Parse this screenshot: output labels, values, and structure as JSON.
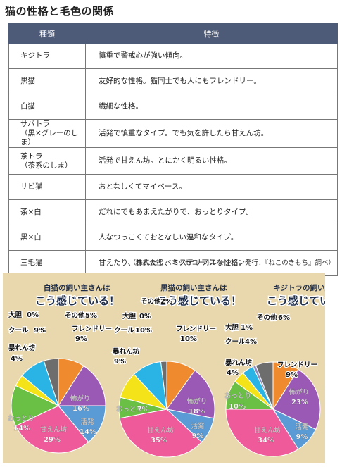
{
  "page_title": "猫の性格と毛色の関係",
  "table": {
    "headers": [
      "種類",
      "特徴"
    ],
    "rows": [
      {
        "type": [
          "キジトラ"
        ],
        "feature": "慎重で警戒心が強い傾向。"
      },
      {
        "type": [
          "黒猫"
        ],
        "feature": "友好的な性格。猫同士でも人にもフレンドリー。"
      },
      {
        "type": [
          "白猫"
        ],
        "feature": "繊細な性格。"
      },
      {
        "type": [
          "サバトラ",
          "（黒×グレーのしま）"
        ],
        "feature": "活発で慎重なタイプ。でも気を許したら甘えん坊。"
      },
      {
        "type": [
          "茶トラ",
          "（茶系のしま）"
        ],
        "feature": "活発で甘えん坊。とにかく明るい性格。"
      },
      {
        "type": [
          "サビ猫"
        ],
        "feature": "おとなしくてマイペース。"
      },
      {
        "type": [
          "茶×白"
        ],
        "feature": "だれにでもあまえたがりで、おっとりタイプ。"
      },
      {
        "type": [
          "黒×白"
        ],
        "feature": "人なつっこくておとなしい温和なタイプ。"
      },
      {
        "type": [
          "三毛猫"
        ],
        "feature": "甘えたり、暴れたり、ミステリアスな性格。"
      }
    ]
  },
  "source_note": "（株式会社 ベネッセコーポレーション発行：『ねこのきもち』調べ）",
  "colors": {
    "header_bg": "#4d5a78",
    "panel_bg": "#e9d8ad",
    "フレンドリー": "#f08a2e",
    "怖がり": "#9b59b6",
    "活発": "#5b9bd5",
    "甘えん坊": "#ee5a9a",
    "おっとり": "#6abf45",
    "暴れん坊": "#f5e31a",
    "クール": "#2ab4e6",
    "大胆": "#8a8cc2",
    "その他": "#6d6d6d"
  },
  "chart_data": [
    {
      "type": "pie",
      "title": [
        "白猫の飼い主さんは",
        "こう感じている！"
      ],
      "slices": [
        {
          "label": "フレンドリー",
          "value": 9,
          "text": "9%"
        },
        {
          "label": "怖がり",
          "value": 16,
          "text": "16%"
        },
        {
          "label": "活発",
          "value": 14,
          "text": "14%"
        },
        {
          "label": "甘えん坊",
          "value": 29,
          "text": "29%"
        },
        {
          "label": "おっとり",
          "value": 14,
          "text": "14%"
        },
        {
          "label": "暴れん坊",
          "value": 4,
          "text": "4%"
        },
        {
          "label": "クール",
          "value": 9,
          "text": "9%"
        },
        {
          "label": "大胆",
          "value": 0,
          "text": "0%"
        },
        {
          "label": "その他",
          "value": 5,
          "text": "5%"
        }
      ]
    },
    {
      "type": "pie",
      "title": [
        "黒猫の飼い主さんは",
        "こう感じている！"
      ],
      "slices": [
        {
          "label": "フレンドリー",
          "value": 10,
          "text": "10%"
        },
        {
          "label": "怖がり",
          "value": 18,
          "text": "18%"
        },
        {
          "label": "活発",
          "value": 9,
          "text": "9%"
        },
        {
          "label": "甘えん坊",
          "value": 35,
          "text": "35%"
        },
        {
          "label": "おっとり",
          "value": 7,
          "text": "7%"
        },
        {
          "label": "暴れん坊",
          "value": 9,
          "text": "9%"
        },
        {
          "label": "クール",
          "value": 10,
          "text": "10%"
        },
        {
          "label": "大胆",
          "value": 0,
          "text": "0%"
        },
        {
          "label": "その他",
          "value": 2,
          "text": "2%"
        }
      ]
    },
    {
      "type": "pie",
      "title": [
        "キジトラの飼い主さんは",
        "こう感じている！"
      ],
      "slices": [
        {
          "label": "フレンドリー",
          "value": 9,
          "text": "9%"
        },
        {
          "label": "怖がり",
          "value": 23,
          "text": "23%"
        },
        {
          "label": "活発",
          "value": 9,
          "text": "9%"
        },
        {
          "label": "甘えん坊",
          "value": 34,
          "text": "34%"
        },
        {
          "label": "おっとり",
          "value": 10,
          "text": "10%"
        },
        {
          "label": "暴れん坊",
          "value": 4,
          "text": "4%"
        },
        {
          "label": "クール",
          "value": 4,
          "text": "4%"
        },
        {
          "label": "大胆",
          "value": 1,
          "text": "1%"
        },
        {
          "label": "その他",
          "value": 6,
          "text": "6%"
        }
      ]
    }
  ]
}
